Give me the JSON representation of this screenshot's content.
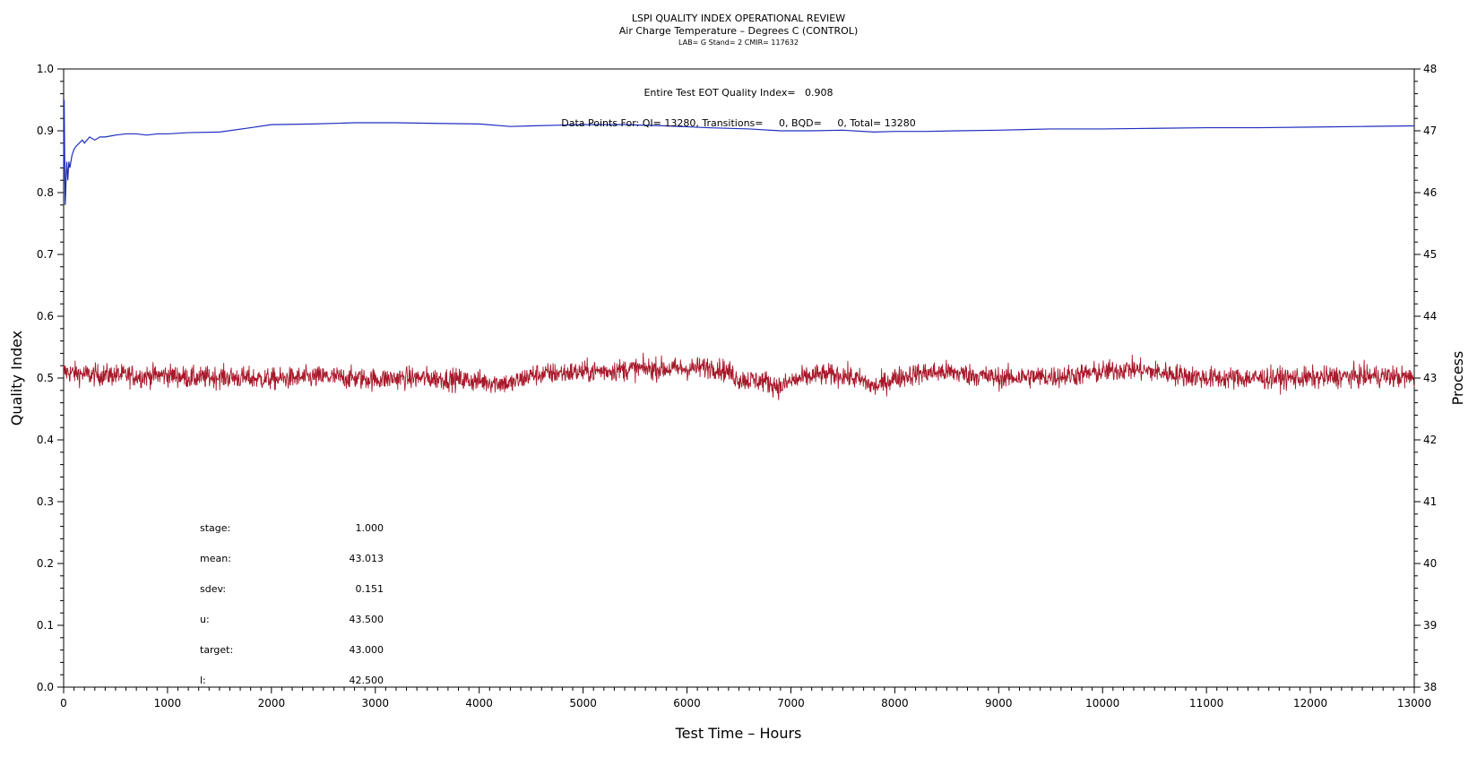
{
  "colors": {
    "background": "#ffffff",
    "axes": "#000000",
    "quality_series": "#1f2dbf",
    "process_series": "#a8182a"
  },
  "chart_data": {
    "type": "line",
    "title": "LSPI QUALITY INDEX OPERATIONAL REVIEW",
    "subtitle": "Air Charge Temperature – Degrees C (CONTROL)",
    "subtitle2": "LAB= G Stand= 2 CMIR= 117632",
    "xlabel": "Test Time – Hours",
    "ylabel": "Quality Index",
    "y2label": "Process",
    "xlim": [
      0,
      13000
    ],
    "ylim": [
      0.0,
      1.0
    ],
    "y2lim": [
      38,
      48
    ],
    "xticks": [
      0,
      1000,
      2000,
      3000,
      4000,
      5000,
      6000,
      7000,
      8000,
      9000,
      10000,
      11000,
      12000,
      13000
    ],
    "yticks": [
      "0.0",
      "0.1",
      "0.2",
      "0.3",
      "0.4",
      "0.5",
      "0.6",
      "0.7",
      "0.8",
      "0.9",
      "1.0"
    ],
    "y2ticks": [
      "38",
      "39",
      "40",
      "41",
      "42",
      "43",
      "44",
      "45",
      "46",
      "47",
      "48"
    ],
    "annotations": {
      "quality_index": "Entire Test EOT Quality Index=   0.908",
      "data_points": "Data Points For: QI= 13280, Transitions=     0, BQD=     0, Total= 13280"
    },
    "stats": [
      {
        "label": "stage:",
        "value": "1.000"
      },
      {
        "label": "mean:",
        "value": "43.013"
      },
      {
        "label": "sdev:",
        "value": "0.151"
      },
      {
        "label": "u:",
        "value": "43.500"
      },
      {
        "label": "target:",
        "value": "43.000"
      },
      {
        "label": "l:",
        "value": "42.500"
      }
    ],
    "grid": false,
    "series": [
      {
        "axis": "left",
        "x": [
          0,
          5,
          10,
          15,
          20,
          25,
          30,
          40,
          50,
          60,
          80,
          100,
          120,
          150,
          180,
          200,
          250,
          300,
          350,
          400,
          500,
          600,
          700,
          800,
          900,
          1000,
          1200,
          1500,
          1800,
          2000,
          2400,
          2800,
          3200,
          3600,
          4000,
          4300,
          4500,
          5000,
          5400,
          5800,
          6200,
          6600,
          6900,
          7200,
          7500,
          7800,
          8000,
          8300,
          8600,
          9000,
          9500,
          10000,
          10500,
          11000,
          11500,
          12000,
          12500,
          13000
        ],
        "y": [
          0.84,
          0.95,
          0.86,
          0.78,
          0.8,
          0.83,
          0.85,
          0.82,
          0.85,
          0.84,
          0.86,
          0.87,
          0.875,
          0.88,
          0.885,
          0.88,
          0.89,
          0.885,
          0.89,
          0.89,
          0.893,
          0.895,
          0.895,
          0.893,
          0.895,
          0.895,
          0.897,
          0.898,
          0.905,
          0.91,
          0.911,
          0.913,
          0.913,
          0.912,
          0.911,
          0.907,
          0.908,
          0.91,
          0.91,
          0.908,
          0.905,
          0.903,
          0.9,
          0.9,
          0.901,
          0.898,
          0.899,
          0.899,
          0.9,
          0.901,
          0.903,
          0.903,
          0.904,
          0.905,
          0.905,
          0.906,
          0.907,
          0.908
        ]
      },
      {
        "axis": "right",
        "x": [
          0,
          250,
          500,
          750,
          1000,
          1250,
          1500,
          1750,
          2000,
          2250,
          2500,
          2750,
          3000,
          3250,
          3500,
          3750,
          4000,
          4250,
          4300,
          4500,
          4750,
          5000,
          5250,
          5500,
          5750,
          6000,
          6250,
          6400,
          6500,
          6750,
          6900,
          7000,
          7250,
          7500,
          7700,
          7800,
          8000,
          8250,
          8500,
          8750,
          9000,
          9250,
          9500,
          9750,
          10000,
          10250,
          10500,
          10750,
          11000,
          11250,
          11500,
          11750,
          12000,
          12250,
          12500,
          12750,
          13000
        ],
        "y": [
          43.1,
          43.05,
          43.05,
          43.03,
          43.05,
          43.0,
          43.02,
          43.0,
          42.98,
          43.0,
          43.02,
          43.0,
          42.98,
          43.0,
          43.0,
          42.98,
          42.95,
          42.92,
          42.9,
          43.05,
          43.08,
          43.1,
          43.12,
          43.15,
          43.15,
          43.15,
          43.18,
          43.1,
          42.98,
          42.95,
          42.85,
          42.95,
          43.05,
          43.05,
          42.95,
          42.85,
          43.0,
          43.08,
          43.1,
          43.05,
          43.0,
          43.02,
          43.02,
          43.05,
          43.1,
          43.15,
          43.1,
          43.05,
          43.0,
          43.0,
          43.0,
          43.0,
          43.0,
          43.02,
          43.03,
          43.03,
          43.0
        ]
      }
    ]
  }
}
